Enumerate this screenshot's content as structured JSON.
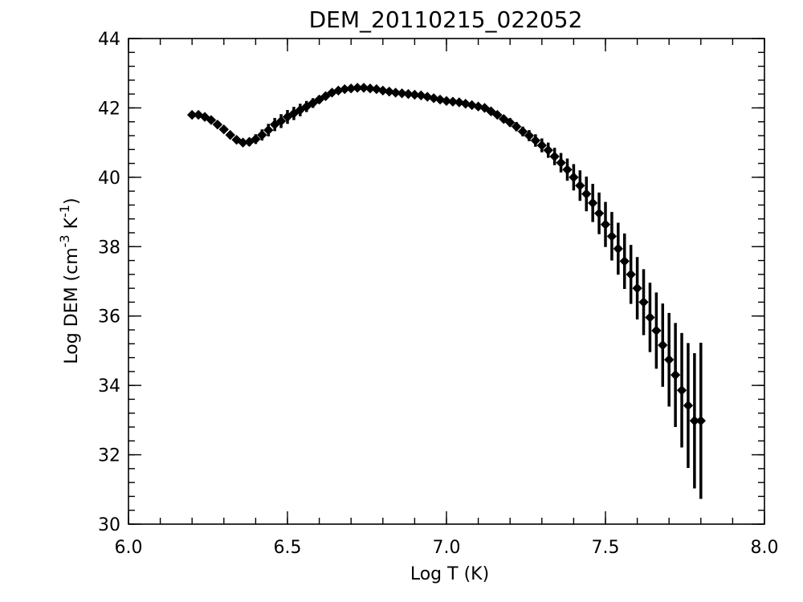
{
  "chart_data": {
    "type": "scatter",
    "title": "DEM_20110215_022052",
    "xlabel": "Log T (K)",
    "ylabel": {
      "base": "Log DEM (cm",
      "exp1": "-3",
      "mid": " K",
      "exp2": "-1",
      "end": ")"
    },
    "xlim": [
      6.0,
      8.0
    ],
    "ylim": [
      30,
      44
    ],
    "x_ticks": [
      6.0,
      6.5,
      7.0,
      7.5,
      8.0
    ],
    "x_tick_labels": [
      "6.0",
      "6.5",
      "7.0",
      "7.5",
      "8.0"
    ],
    "x_minor_step": 0.1,
    "y_ticks": [
      30,
      32,
      34,
      36,
      38,
      40,
      42,
      44
    ],
    "y_tick_labels": [
      "30",
      "32",
      "34",
      "36",
      "38",
      "40",
      "42",
      "44"
    ],
    "y_minor_step": 0.4,
    "grid": false,
    "marker": "diamond",
    "color": "#000000",
    "series": [
      {
        "x": [
          6.2,
          6.22,
          6.24,
          6.26,
          6.28,
          6.3,
          6.32,
          6.34,
          6.36,
          6.38,
          6.4,
          6.42,
          6.44,
          6.46,
          6.48,
          6.5,
          6.52,
          6.54,
          6.56,
          6.58,
          6.6,
          6.62,
          6.64,
          6.66,
          6.68,
          6.7,
          6.72,
          6.74,
          6.76,
          6.78,
          6.8,
          6.82,
          6.84,
          6.86,
          6.88,
          6.9,
          6.92,
          6.94,
          6.96,
          6.98,
          7.0,
          7.02,
          7.04,
          7.06,
          7.08,
          7.1,
          7.12,
          7.14,
          7.16,
          7.18,
          7.2,
          7.22,
          7.24,
          7.26,
          7.28,
          7.3,
          7.32,
          7.34,
          7.36,
          7.38,
          7.4,
          7.42,
          7.44,
          7.46,
          7.48,
          7.5,
          7.52,
          7.54,
          7.56,
          7.58,
          7.6,
          7.62,
          7.64,
          7.66,
          7.68,
          7.7,
          7.72,
          7.74,
          7.76,
          7.78,
          7.8
        ],
        "y": [
          41.8,
          41.8,
          41.74,
          41.65,
          41.52,
          41.38,
          41.22,
          41.08,
          41.0,
          41.02,
          41.1,
          41.22,
          41.36,
          41.52,
          41.62,
          41.74,
          41.84,
          41.94,
          42.04,
          42.14,
          42.24,
          42.34,
          42.44,
          42.5,
          42.54,
          42.56,
          42.58,
          42.58,
          42.56,
          42.54,
          42.5,
          42.47,
          42.44,
          42.42,
          42.4,
          42.38,
          42.36,
          42.32,
          42.28,
          42.24,
          42.2,
          42.18,
          42.16,
          42.12,
          42.08,
          42.04,
          42.0,
          41.9,
          41.8,
          41.68,
          41.58,
          41.46,
          41.32,
          41.2,
          41.06,
          40.92,
          40.78,
          40.6,
          40.42,
          40.22,
          40.0,
          39.76,
          39.52,
          39.26,
          38.96,
          38.64,
          38.3,
          37.94,
          37.58,
          37.2,
          36.8,
          36.4,
          35.96,
          35.58,
          35.16,
          34.74,
          34.3,
          33.86,
          33.42,
          32.98,
          32.98
        ],
        "err": [
          0.05,
          0.05,
          0.05,
          0.05,
          0.05,
          0.06,
          0.07,
          0.08,
          0.1,
          0.12,
          0.14,
          0.16,
          0.18,
          0.19,
          0.2,
          0.2,
          0.19,
          0.18,
          0.16,
          0.14,
          0.12,
          0.1,
          0.09,
          0.08,
          0.07,
          0.07,
          0.07,
          0.07,
          0.07,
          0.07,
          0.07,
          0.07,
          0.07,
          0.07,
          0.07,
          0.07,
          0.07,
          0.07,
          0.07,
          0.07,
          0.07,
          0.07,
          0.07,
          0.08,
          0.08,
          0.09,
          0.09,
          0.1,
          0.1,
          0.11,
          0.12,
          0.13,
          0.14,
          0.16,
          0.18,
          0.2,
          0.22,
          0.25,
          0.28,
          0.32,
          0.38,
          0.44,
          0.5,
          0.55,
          0.6,
          0.65,
          0.7,
          0.75,
          0.8,
          0.85,
          0.9,
          0.95,
          1.0,
          1.1,
          1.2,
          1.35,
          1.5,
          1.65,
          1.8,
          1.95,
          2.25
        ]
      }
    ]
  }
}
